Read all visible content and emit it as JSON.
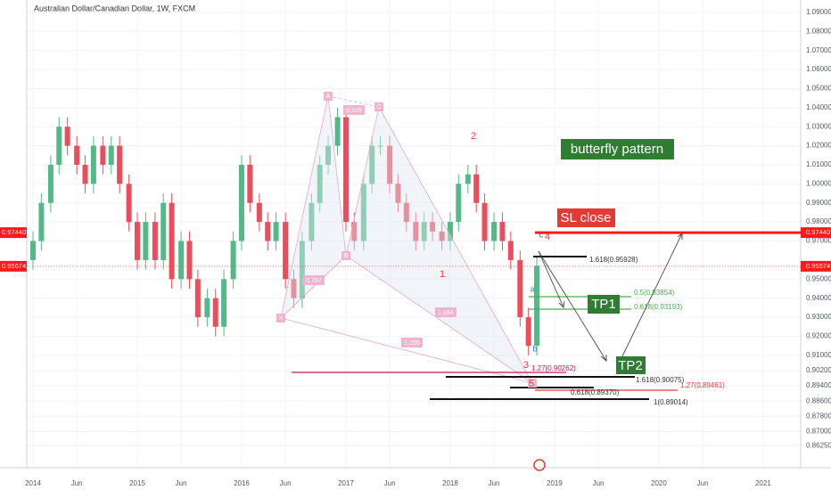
{
  "chart_data": {
    "type": "candlestick",
    "title": "Australian Dollar/Canadian Dollar, 1W, FXCM",
    "xlim": [
      2013.94,
      2021.36
    ],
    "ylim": [
      0.851,
      1.0965
    ],
    "grid": true,
    "up_color": "#53b987",
    "down_color": "#eb4d5c",
    "x": [
      2014,
      2014.08,
      2014.17,
      2014.25,
      2014.33,
      2014.42,
      2014.5,
      2014.58,
      2014.67,
      2014.75,
      2014.83,
      2014.92,
      2015,
      2015.08,
      2015.17,
      2015.25,
      2015.33,
      2015.42,
      2015.5,
      2015.58,
      2015.67,
      2015.75,
      2015.83,
      2015.92,
      2016,
      2016.08,
      2016.17,
      2016.25,
      2016.33,
      2016.42,
      2016.5,
      2016.58,
      2016.67,
      2016.75,
      2016.83,
      2016.92,
      2017,
      2017.08,
      2017.17,
      2017.25,
      2017.33,
      2017.42,
      2017.5,
      2017.58,
      2017.67,
      2017.75,
      2017.83,
      2017.92,
      2018,
      2018.08,
      2018.17,
      2018.25,
      2018.33,
      2018.42,
      2018.5,
      2018.58,
      2018.67,
      2018.75,
      2018.83
    ],
    "open": [
      0.96,
      0.97,
      0.99,
      1.01,
      1.03,
      1.02,
      1.01,
      1.0,
      1.02,
      1.01,
      1.02,
      1.0,
      0.98,
      0.96,
      0.98,
      0.96,
      0.99,
      0.95,
      0.97,
      0.95,
      0.93,
      0.94,
      0.925,
      0.95,
      0.97,
      1.01,
      0.99,
      0.98,
      0.97,
      0.98,
      0.95,
      0.94,
      0.97,
      0.99,
      1.01,
      1.02,
      1.035,
      0.98,
      0.97,
      1.0,
      1.02,
      1.02,
      1.0,
      0.99,
      0.98,
      0.97,
      0.98,
      0.975,
      0.97,
      0.98,
      1.0,
      1.005,
      0.99,
      0.97,
      0.98,
      0.97,
      0.96,
      0.93,
      0.915
    ],
    "high": [
      0.975,
      0.995,
      1.015,
      1.035,
      1.035,
      1.025,
      1.015,
      1.025,
      1.025,
      1.025,
      1.025,
      1.005,
      0.985,
      0.985,
      0.985,
      0.995,
      0.995,
      0.975,
      0.975,
      0.955,
      0.945,
      0.945,
      0.955,
      0.975,
      1.015,
      1.015,
      0.995,
      0.985,
      0.985,
      0.985,
      0.955,
      0.975,
      0.995,
      1.015,
      1.025,
      1.04,
      1.04,
      0.985,
      1.005,
      1.025,
      1.025,
      1.025,
      1.005,
      0.995,
      0.985,
      0.985,
      0.985,
      0.98,
      0.985,
      1.005,
      1.01,
      1.01,
      0.995,
      0.985,
      0.985,
      0.975,
      0.965,
      0.935,
      0.962
    ],
    "low": [
      0.955,
      0.965,
      0.985,
      1.005,
      1.015,
      1.005,
      0.995,
      0.995,
      1.005,
      1.005,
      0.995,
      0.975,
      0.955,
      0.955,
      0.955,
      0.955,
      0.945,
      0.945,
      0.945,
      0.925,
      0.925,
      0.92,
      0.92,
      0.945,
      0.965,
      0.985,
      0.975,
      0.965,
      0.965,
      0.945,
      0.935,
      0.935,
      0.965,
      0.985,
      1.005,
      1.015,
      0.975,
      0.965,
      0.965,
      0.995,
      1.015,
      0.995,
      0.985,
      0.975,
      0.965,
      0.965,
      0.97,
      0.965,
      0.965,
      0.975,
      0.995,
      0.985,
      0.965,
      0.965,
      0.965,
      0.955,
      0.925,
      0.91,
      0.91
    ],
    "close": [
      0.97,
      0.99,
      1.01,
      1.03,
      1.02,
      1.01,
      1.0,
      1.02,
      1.01,
      1.02,
      1.0,
      0.98,
      0.96,
      0.98,
      0.96,
      0.99,
      0.95,
      0.97,
      0.95,
      0.93,
      0.94,
      0.925,
      0.95,
      0.97,
      1.01,
      0.99,
      0.98,
      0.97,
      0.98,
      0.95,
      0.94,
      0.97,
      0.99,
      1.01,
      1.02,
      1.035,
      0.98,
      0.97,
      1.0,
      1.02,
      1.02,
      1.0,
      0.99,
      0.98,
      0.97,
      0.98,
      0.975,
      0.97,
      0.98,
      1.0,
      1.005,
      0.99,
      0.97,
      0.98,
      0.97,
      0.96,
      0.93,
      0.915,
      0.957
    ],
    "yticks": [
      {
        "value": 1.09,
        "label": "1.09000"
      },
      {
        "value": 1.08,
        "label": "1.08000"
      },
      {
        "value": 1.07,
        "label": "1.07000"
      },
      {
        "value": 1.06,
        "label": "1.06000"
      },
      {
        "value": 1.05,
        "label": "1.05000"
      },
      {
        "value": 1.04,
        "label": "1.04000"
      },
      {
        "value": 1.03,
        "label": "1.03000"
      },
      {
        "value": 1.02,
        "label": "1.02000"
      },
      {
        "value": 1.01,
        "label": "1.01000"
      },
      {
        "value": 1.0,
        "label": "1.00000"
      },
      {
        "value": 0.99,
        "label": "0.99000"
      },
      {
        "value": 0.98,
        "label": "0.98000"
      },
      {
        "value": 0.97,
        "label": "0.97000"
      },
      {
        "value": 0.95,
        "label": "0.95000"
      },
      {
        "value": 0.94,
        "label": "0.94000"
      },
      {
        "value": 0.93,
        "label": "0.93000"
      },
      {
        "value": 0.92,
        "label": "0.92000"
      },
      {
        "value": 0.91,
        "label": "0.91000"
      },
      {
        "value": 0.902,
        "label": "0.90200"
      },
      {
        "value": 0.894,
        "label": "0.89400"
      },
      {
        "value": 0.886,
        "label": "0.88600"
      },
      {
        "value": 0.878,
        "label": "0.87800"
      },
      {
        "value": 0.87,
        "label": "0.87000"
      },
      {
        "value": 0.8625,
        "label": "0.86250"
      }
    ],
    "xticks": [
      2014,
      {
        "value": 2014.42,
        "label": "Jun"
      },
      2015,
      {
        "value": 2015.42,
        "label": "Jun"
      },
      2016,
      {
        "value": 2016.42,
        "label": "Jun"
      },
      2017,
      {
        "value": 2017.42,
        "label": "Jun"
      },
      2018,
      {
        "value": 2018.42,
        "label": "Jun"
      },
      2019,
      {
        "value": 2019.42,
        "label": "Jun"
      },
      2020,
      {
        "value": 2020.42,
        "label": "Jun"
      },
      2021
    ],
    "price_tags": [
      {
        "value": 0.9744,
        "label": "0.97440"
      },
      {
        "value": 0.95674,
        "label": "0.95674"
      }
    ],
    "annotations": {
      "pattern": "butterfly pattern",
      "stop": "SL close",
      "tp1": "TP1",
      "tp2": "TP2",
      "fib_labels": [
        "1.618(0.95928)",
        "0.5(0.93854)",
        "0.618(0.93193)",
        "1.27(0.90262)",
        "1.618(0.90075)",
        "1.27(0.89461)",
        "0.618(0.89370)",
        "1(0.89014)"
      ],
      "points": [
        "X",
        "A",
        "B",
        "C",
        "D"
      ],
      "ratios": [
        "0.929",
        "0.787",
        "1.884",
        "1.265"
      ],
      "waves": [
        "1",
        "2",
        "3",
        "4",
        "5"
      ],
      "abc": [
        "a",
        "b",
        "c"
      ]
    }
  }
}
